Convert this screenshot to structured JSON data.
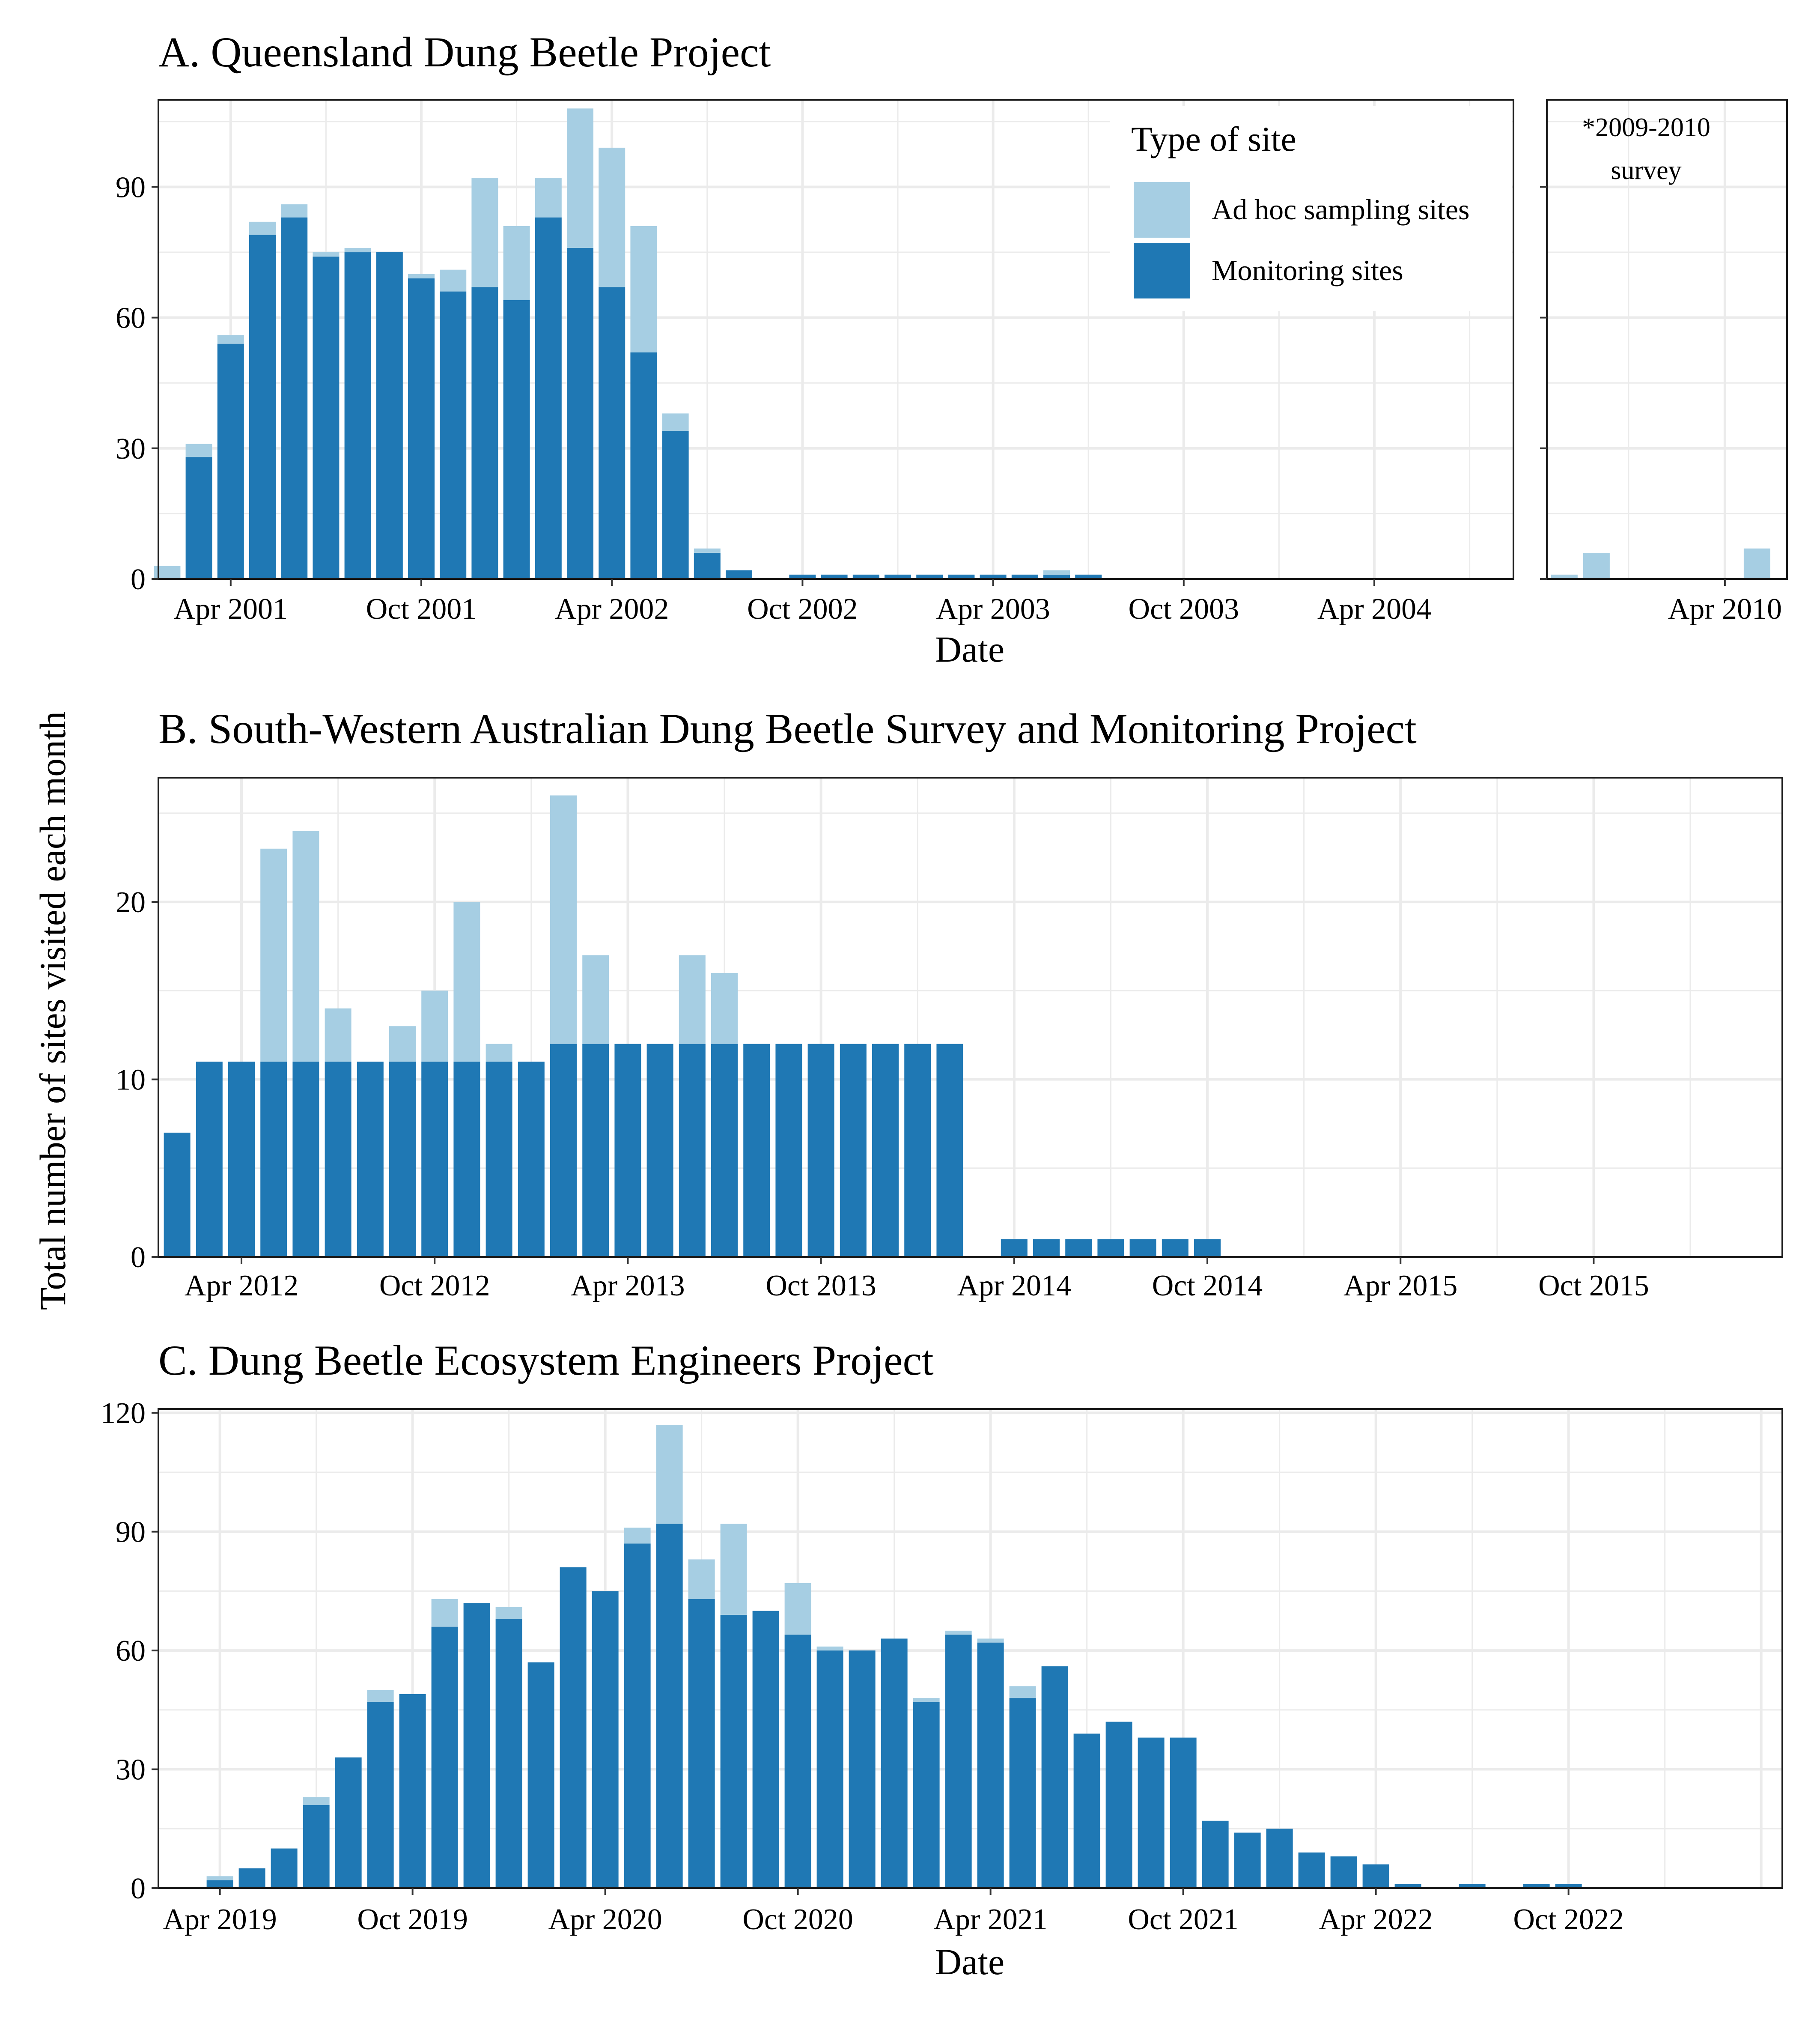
{
  "figure": {
    "y_axis_label": "Total number of sites visited each month",
    "legend": {
      "title": "Type of site",
      "items": [
        {
          "label": "Ad hoc sampling sites",
          "color": "#a6cee3"
        },
        {
          "label": "Monitoring sites",
          "color": "#1f78b4"
        }
      ]
    }
  },
  "chart_data": [
    {
      "type": "bar",
      "stacked": true,
      "title": "A. Queensland Dung Beetle Project",
      "xlabel": "Date",
      "ylabel": "Total number of sites visited each month",
      "x_tick_labels": [
        "Apr 2001",
        "Oct 2001",
        "Apr 2002",
        "Oct 2002",
        "Apr 2003",
        "Oct 2003",
        "Apr 2004"
      ],
      "y_ticks": [
        0,
        30,
        60,
        90
      ],
      "ylim": [
        0,
        110
      ],
      "legend_position": "top-right inside",
      "grid": true,
      "categories": [
        "Jan 2001",
        "Feb 2001",
        "Mar 2001",
        "Apr 2001",
        "May 2001",
        "Jun 2001",
        "Jul 2001",
        "Aug 2001",
        "Sep 2001",
        "Oct 2001",
        "Nov 2001",
        "Dec 2001",
        "Jan 2002",
        "Feb 2002",
        "Mar 2002",
        "Apr 2002",
        "May 2002",
        "Jun 2002",
        "Jul 2002",
        "Aug 2002",
        "Sep 2002",
        "Oct 2002",
        "Nov 2002",
        "Dec 2002",
        "Jan 2003",
        "Feb 2003",
        "Mar 2003",
        "Apr 2003",
        "May 2003",
        "Jun 2003"
      ],
      "series": [
        {
          "name": "Monitoring sites",
          "values": [
            0,
            28,
            54,
            79,
            83,
            74,
            75,
            75,
            69,
            66,
            67,
            64,
            83,
            76,
            67,
            52,
            34,
            6,
            2,
            0,
            1,
            1,
            1,
            1,
            1,
            1,
            1,
            1,
            1,
            1
          ]
        },
        {
          "name": "Ad hoc sampling sites",
          "values": [
            3,
            3,
            2,
            3,
            3,
            1,
            1,
            0,
            1,
            5,
            25,
            17,
            9,
            32,
            32,
            29,
            4,
            1,
            0,
            0,
            0,
            0,
            0,
            0,
            0,
            0,
            0,
            0,
            1,
            0
          ]
        }
      ]
    },
    {
      "type": "bar",
      "stacked": true,
      "title": "*2009-2010 survey",
      "x_tick_labels": [
        "Apr 2010"
      ],
      "y_ticks": [
        0,
        30,
        60,
        90
      ],
      "ylim": [
        0,
        110
      ],
      "grid": true,
      "categories": [
        "Nov 2009",
        "Dec 2009",
        "Jan 2010",
        "Feb 2010",
        "Mar 2010",
        "Apr 2010",
        "May 2010"
      ],
      "series": [
        {
          "name": "Monitoring sites",
          "values": [
            0,
            0,
            0,
            0,
            0,
            0,
            0
          ]
        },
        {
          "name": "Ad hoc sampling sites",
          "values": [
            1,
            6,
            0,
            0,
            0,
            0,
            7
          ]
        }
      ]
    },
    {
      "type": "bar",
      "stacked": true,
      "title": "B. South-Western Australian Dung Beetle Survey and Monitoring Project",
      "x_tick_labels": [
        "Apr 2012",
        "Oct 2012",
        "Apr 2013",
        "Oct 2013",
        "Apr 2014",
        "Oct 2014",
        "Apr 2015",
        "Oct 2015"
      ],
      "y_ticks": [
        0,
        10,
        20
      ],
      "ylim": [
        0,
        27
      ],
      "grid": true,
      "categories": [
        "Feb 2012",
        "Mar 2012",
        "Apr 2012",
        "May 2012",
        "Jun 2012",
        "Jul 2012",
        "Aug 2012",
        "Sep 2012",
        "Oct 2012",
        "Nov 2012",
        "Dec 2012",
        "Jan 2013",
        "Feb 2013",
        "Mar 2013",
        "Apr 2013",
        "May 2013",
        "Jun 2013",
        "Jul 2013",
        "Aug 2013",
        "Sep 2013",
        "Oct 2013",
        "Nov 2013",
        "Dec 2013",
        "Jan 2014",
        "Feb 2014",
        "Mar 2014",
        "Apr 2014",
        "May 2014",
        "Jun 2014",
        "Jul 2014",
        "Aug 2014",
        "Sep 2014",
        "Oct 2014"
      ],
      "series": [
        {
          "name": "Monitoring sites",
          "values": [
            7,
            11,
            11,
            11,
            11,
            11,
            11,
            11,
            11,
            11,
            11,
            11,
            12,
            12,
            12,
            12,
            12,
            12,
            12,
            12,
            12,
            12,
            12,
            12,
            12,
            0,
            1,
            1,
            1,
            1,
            1,
            1,
            1
          ]
        },
        {
          "name": "Ad hoc sampling sites",
          "values": [
            0,
            0,
            0,
            12,
            13,
            3,
            0,
            2,
            4,
            9,
            1,
            0,
            14,
            5,
            0,
            0,
            5,
            4,
            0,
            0,
            0,
            0,
            0,
            0,
            0,
            0,
            0,
            0,
            0,
            0,
            0,
            0,
            0
          ]
        }
      ]
    },
    {
      "type": "bar",
      "stacked": true,
      "title": "C. Dung Beetle Ecosystem Engineers Project",
      "xlabel": "Date",
      "x_tick_labels": [
        "Apr 2019",
        "Oct 2019",
        "Apr 2020",
        "Oct 2020",
        "Apr 2021",
        "Oct 2021",
        "Apr 2022",
        "Oct 2022"
      ],
      "y_ticks": [
        0,
        30,
        60,
        90,
        120
      ],
      "ylim": [
        0,
        121
      ],
      "grid": true,
      "categories": [
        "Apr 2019",
        "May 2019",
        "Jun 2019",
        "Jul 2019",
        "Aug 2019",
        "Sep 2019",
        "Oct 2019",
        "Nov 2019",
        "Dec 2019",
        "Jan 2020",
        "Feb 2020",
        "Mar 2020",
        "Apr 2020",
        "May 2020",
        "Jun 2020",
        "Jul 2020",
        "Aug 2020",
        "Sep 2020",
        "Oct 2020",
        "Nov 2020",
        "Dec 2020",
        "Jan 2021",
        "Feb 2021",
        "Mar 2021",
        "Apr 2021",
        "May 2021",
        "Jun 2021",
        "Jul 2021",
        "Aug 2021",
        "Sep 2021",
        "Oct 2021",
        "Nov 2021",
        "Dec 2021",
        "Jan 2022",
        "Feb 2022",
        "Mar 2022",
        "Apr 2022",
        "May 2022",
        "Jun 2022",
        "Jul 2022",
        "Aug 2022",
        "Sep 2022",
        "Oct 2022"
      ],
      "series": [
        {
          "name": "Monitoring sites",
          "values": [
            2,
            5,
            10,
            21,
            33,
            47,
            49,
            66,
            72,
            68,
            57,
            81,
            75,
            87,
            92,
            73,
            69,
            70,
            64,
            60,
            60,
            63,
            47,
            64,
            62,
            48,
            56,
            39,
            42,
            38,
            38,
            17,
            14,
            15,
            9,
            8,
            6,
            1,
            0,
            1,
            0,
            1,
            1
          ]
        },
        {
          "name": "Ad hoc sampling sites",
          "values": [
            1,
            0,
            0,
            2,
            0,
            3,
            0,
            7,
            0,
            3,
            0,
            0,
            0,
            4,
            25,
            10,
            23,
            0,
            13,
            1,
            0,
            0,
            1,
            1,
            1,
            3,
            0,
            0,
            0,
            0,
            0,
            0,
            0,
            0,
            0,
            0,
            0,
            0,
            0,
            0,
            0,
            0,
            0
          ]
        }
      ]
    }
  ]
}
